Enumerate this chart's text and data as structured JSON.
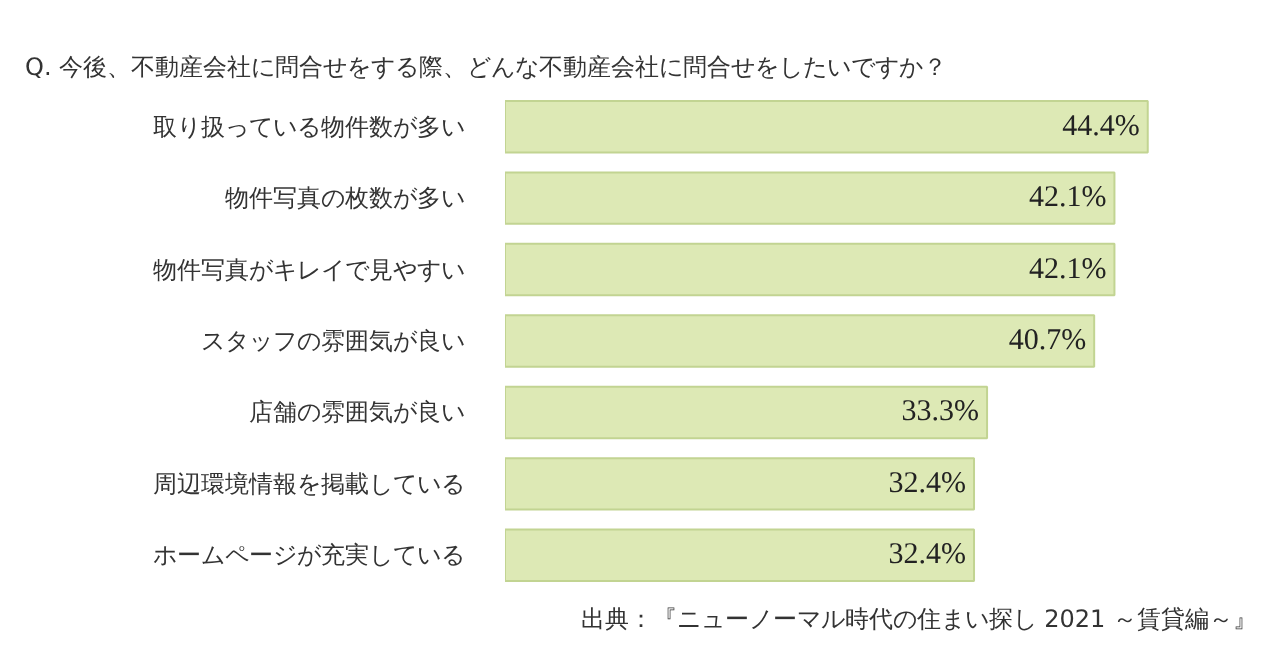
{
  "chart_data": {
    "type": "bar",
    "orientation": "horizontal",
    "title": "Q. 今後、不動産会社に問合せをする際、どんな不動産会社に問合せをしたいですか？",
    "categories": [
      "取り扱っている物件数が多い",
      "物件写真の枚数が多い",
      "物件写真がキレイで見やすい",
      "スタッフの雰囲気が良い",
      "店舗の雰囲気が良い",
      "周辺環境情報を掲載している",
      "ホームページが充実している"
    ],
    "values": [
      44.4,
      42.1,
      42.1,
      40.7,
      33.3,
      32.4,
      32.4
    ],
    "value_labels": [
      "44.4%",
      "42.1%",
      "42.1%",
      "40.7%",
      "33.3%",
      "32.4%",
      "32.4%"
    ],
    "color": "#dde9b5",
    "annotations": [
      "出典：『ニューノーマル時代の住まい探し 2021 ～賃貸編～』"
    ]
  }
}
